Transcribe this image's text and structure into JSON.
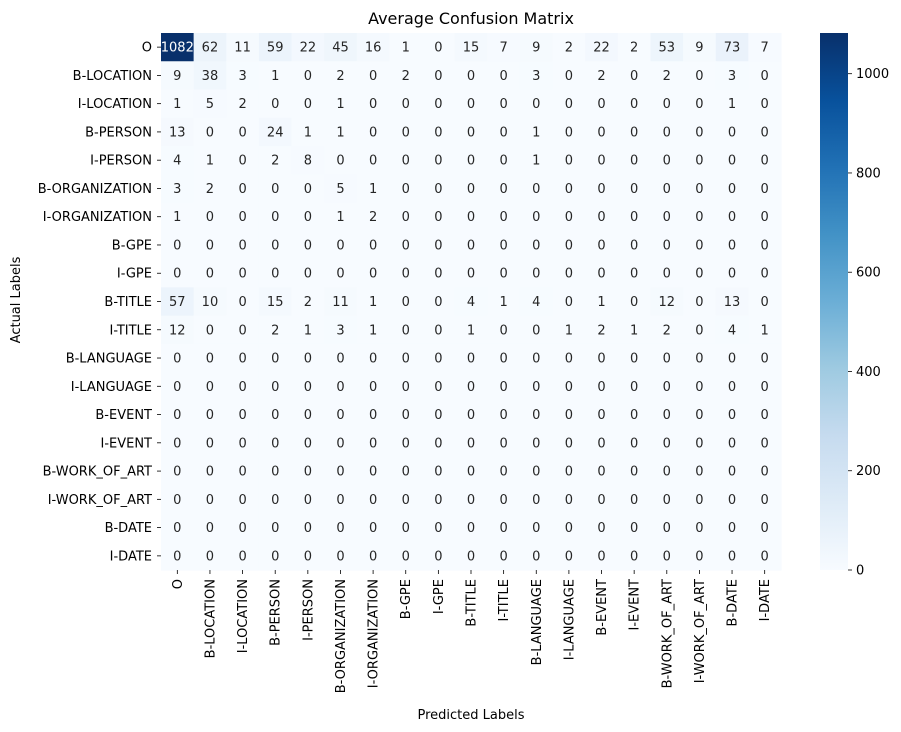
{
  "chart_data": {
    "type": "heatmap",
    "title": "Average Confusion Matrix",
    "xlabel": "Predicted Labels",
    "ylabel": "Actual Labels",
    "row_labels": [
      "O",
      "B-LOCATION",
      "I-LOCATION",
      "B-PERSON",
      "I-PERSON",
      "B-ORGANIZATION",
      "I-ORGANIZATION",
      "B-GPE",
      "I-GPE",
      "B-TITLE",
      "I-TITLE",
      "B-LANGUAGE",
      "I-LANGUAGE",
      "B-EVENT",
      "I-EVENT",
      "B-WORK_OF_ART",
      "I-WORK_OF_ART",
      "B-DATE",
      "I-DATE"
    ],
    "col_labels": [
      "O",
      "B-LOCATION",
      "I-LOCATION",
      "B-PERSON",
      "I-PERSON",
      "B-ORGANIZATION",
      "I-ORGANIZATION",
      "B-GPE",
      "I-GPE",
      "B-TITLE",
      "I-TITLE",
      "B-LANGUAGE",
      "I-LANGUAGE",
      "B-EVENT",
      "I-EVENT",
      "B-WORK_OF_ART",
      "I-WORK_OF_ART",
      "B-DATE",
      "I-DATE"
    ],
    "values": [
      [
        1082,
        62,
        11,
        59,
        22,
        45,
        16,
        1,
        0,
        15,
        7,
        9,
        2,
        22,
        2,
        53,
        9,
        73,
        7
      ],
      [
        9,
        38,
        3,
        1,
        0,
        2,
        0,
        2,
        0,
        0,
        0,
        3,
        0,
        2,
        0,
        2,
        0,
        3,
        0
      ],
      [
        1,
        5,
        2,
        0,
        0,
        1,
        0,
        0,
        0,
        0,
        0,
        0,
        0,
        0,
        0,
        0,
        0,
        1,
        0
      ],
      [
        13,
        0,
        0,
        24,
        1,
        1,
        0,
        0,
        0,
        0,
        0,
        1,
        0,
        0,
        0,
        0,
        0,
        0,
        0
      ],
      [
        4,
        1,
        0,
        2,
        8,
        0,
        0,
        0,
        0,
        0,
        0,
        1,
        0,
        0,
        0,
        0,
        0,
        0,
        0
      ],
      [
        3,
        2,
        0,
        0,
        0,
        5,
        1,
        0,
        0,
        0,
        0,
        0,
        0,
        0,
        0,
        0,
        0,
        0,
        0
      ],
      [
        1,
        0,
        0,
        0,
        0,
        1,
        2,
        0,
        0,
        0,
        0,
        0,
        0,
        0,
        0,
        0,
        0,
        0,
        0
      ],
      [
        0,
        0,
        0,
        0,
        0,
        0,
        0,
        0,
        0,
        0,
        0,
        0,
        0,
        0,
        0,
        0,
        0,
        0,
        0
      ],
      [
        0,
        0,
        0,
        0,
        0,
        0,
        0,
        0,
        0,
        0,
        0,
        0,
        0,
        0,
        0,
        0,
        0,
        0,
        0
      ],
      [
        57,
        10,
        0,
        15,
        2,
        11,
        1,
        0,
        0,
        4,
        1,
        4,
        0,
        1,
        0,
        12,
        0,
        13,
        0
      ],
      [
        12,
        0,
        0,
        2,
        1,
        3,
        1,
        0,
        0,
        1,
        0,
        0,
        1,
        2,
        1,
        2,
        0,
        4,
        1
      ],
      [
        0,
        0,
        0,
        0,
        0,
        0,
        0,
        0,
        0,
        0,
        0,
        0,
        0,
        0,
        0,
        0,
        0,
        0,
        0
      ],
      [
        0,
        0,
        0,
        0,
        0,
        0,
        0,
        0,
        0,
        0,
        0,
        0,
        0,
        0,
        0,
        0,
        0,
        0,
        0
      ],
      [
        0,
        0,
        0,
        0,
        0,
        0,
        0,
        0,
        0,
        0,
        0,
        0,
        0,
        0,
        0,
        0,
        0,
        0,
        0
      ],
      [
        0,
        0,
        0,
        0,
        0,
        0,
        0,
        0,
        0,
        0,
        0,
        0,
        0,
        0,
        0,
        0,
        0,
        0,
        0
      ],
      [
        0,
        0,
        0,
        0,
        0,
        0,
        0,
        0,
        0,
        0,
        0,
        0,
        0,
        0,
        0,
        0,
        0,
        0,
        0
      ],
      [
        0,
        0,
        0,
        0,
        0,
        0,
        0,
        0,
        0,
        0,
        0,
        0,
        0,
        0,
        0,
        0,
        0,
        0,
        0
      ],
      [
        0,
        0,
        0,
        0,
        0,
        0,
        0,
        0,
        0,
        0,
        0,
        0,
        0,
        0,
        0,
        0,
        0,
        0,
        0
      ],
      [
        0,
        0,
        0,
        0,
        0,
        0,
        0,
        0,
        0,
        0,
        0,
        0,
        0,
        0,
        0,
        0,
        0,
        0,
        0
      ]
    ],
    "colorbar": {
      "min": 0,
      "max": 1082,
      "ticks": [
        0,
        200,
        400,
        600,
        800,
        1000
      ],
      "colormap": "Blues",
      "color_low": "#f7fbff",
      "color_high": "#08306b"
    },
    "annotations_on": true,
    "grid": false
  }
}
